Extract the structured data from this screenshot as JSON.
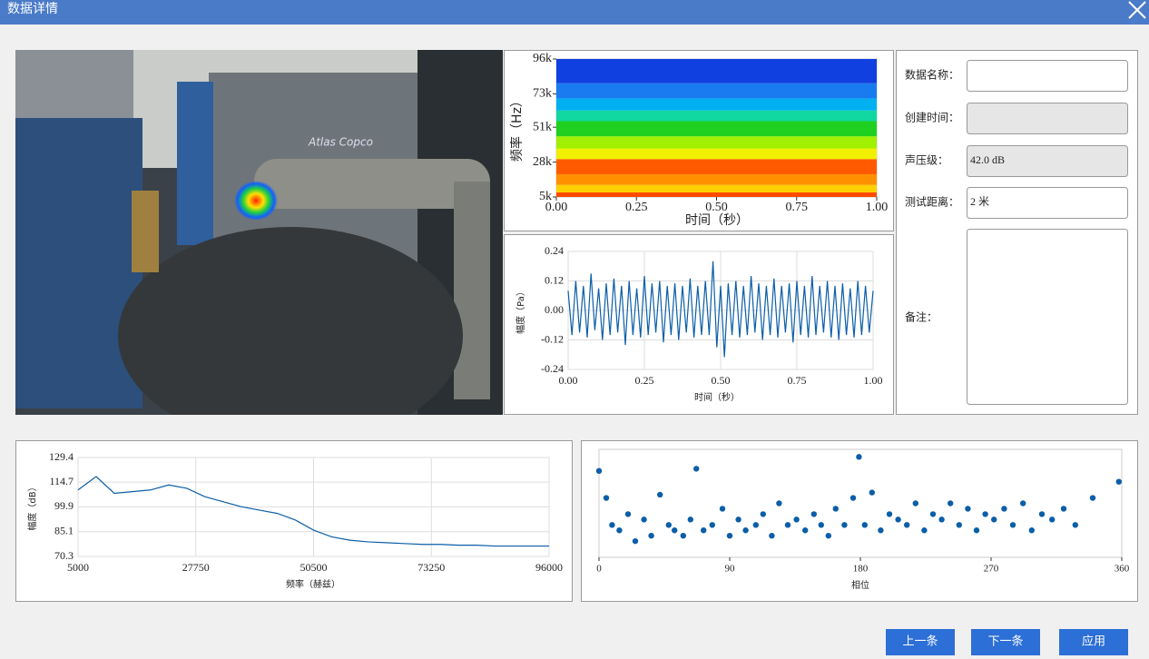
{
  "header": {
    "title": "数据详情"
  },
  "photo": {
    "label": "Atlas Copco"
  },
  "chart_data": [
    {
      "type": "spectrogram",
      "xlabel": "时间（秒）",
      "ylabel": "频率（Hz）",
      "xlim": [
        0,
        1
      ],
      "ylim": [
        5000,
        96000
      ],
      "xticks": [
        {
          "value": 0,
          "label": "0.00"
        },
        0.25,
        {
          "value": 0.5,
          "label": "0.50"
        },
        0.75,
        {
          "value": 1,
          "label": "1.00"
        }
      ],
      "yticks": [
        {
          "value": 96000,
          "label": "96k"
        },
        {
          "value": 73000,
          "label": "73k"
        },
        {
          "value": 51000,
          "label": "51k"
        },
        {
          "value": 28000,
          "label": "28k"
        },
        {
          "value": 5000,
          "label": "5k"
        }
      ],
      "grid": false,
      "bands": {
        "y": [
          5000,
          8000,
          13000,
          20000,
          30000,
          37000,
          45000,
          55000,
          62000,
          70000,
          80000,
          96000
        ],
        "colors": [
          "#ff4a00",
          "#ffd000",
          "#ff9000",
          "#ff5a00",
          "#f0f000",
          "#a0f000",
          "#20d020",
          "#10d8a0",
          "#00b0f0",
          "#1a7af0",
          "#1040e0"
        ]
      }
    },
    {
      "type": "line",
      "xlabel": "时间（秒）",
      "ylabel": "幅度（Pa）",
      "color": "#0b5ea8",
      "xlim": [
        0,
        1
      ],
      "ylim": [
        -0.24,
        0.24
      ],
      "xticks": [
        {
          "value": 0,
          "label": "0.00"
        },
        0.25,
        {
          "value": 0.5,
          "label": "0.50"
        },
        0.75,
        {
          "value": 1,
          "label": "1.00"
        }
      ],
      "yticks": [
        0.24,
        0.12,
        {
          "value": 0,
          "label": "0.00"
        },
        -0.12,
        -0.24
      ],
      "grid": true,
      "x": [
        0,
        0.0125,
        0.025,
        0.0375,
        0.05,
        0.0625,
        0.075,
        0.0875,
        0.1,
        0.1125,
        0.125,
        0.1375,
        0.15,
        0.1625,
        0.175,
        0.1875,
        0.2,
        0.2125,
        0.225,
        0.2375,
        0.25,
        0.2625,
        0.275,
        0.2875,
        0.3,
        0.3125,
        0.325,
        0.3375,
        0.35,
        0.3625,
        0.375,
        0.3875,
        0.4,
        0.4125,
        0.425,
        0.4375,
        0.45,
        0.4625,
        0.475,
        0.4875,
        0.5,
        0.5125,
        0.525,
        0.5375,
        0.55,
        0.5625,
        0.575,
        0.5875,
        0.6,
        0.6125,
        0.625,
        0.6375,
        0.65,
        0.6625,
        0.675,
        0.6875,
        0.7,
        0.7125,
        0.725,
        0.7375,
        0.75,
        0.7625,
        0.775,
        0.7875,
        0.8,
        0.8125,
        0.825,
        0.8375,
        0.85,
        0.8625,
        0.875,
        0.8875,
        0.9,
        0.9125,
        0.925,
        0.9375,
        0.95,
        0.9625,
        0.975,
        0.9875,
        1
      ],
      "values": [
        0.08,
        -0.1,
        0.12,
        -0.09,
        0.1,
        -0.11,
        0.15,
        -0.08,
        0.09,
        -0.12,
        0.11,
        -0.1,
        0.13,
        -0.09,
        0.1,
        -0.14,
        0.12,
        -0.1,
        0.09,
        -0.11,
        0.14,
        -0.1,
        0.11,
        -0.09,
        0.12,
        -0.13,
        0.1,
        -0.1,
        0.11,
        -0.12,
        0.1,
        -0.09,
        0.13,
        -0.11,
        0.1,
        -0.1,
        0.12,
        -0.1,
        0.2,
        -0.15,
        0.1,
        -0.19,
        0.11,
        -0.1,
        0.12,
        -0.11,
        0.1,
        -0.1,
        0.14,
        -0.09,
        0.11,
        -0.12,
        0.1,
        -0.1,
        0.13,
        -0.11,
        0.1,
        -0.09,
        0.11,
        -0.13,
        0.12,
        -0.1,
        0.1,
        -0.11,
        0.14,
        -0.1,
        0.1,
        -0.09,
        0.12,
        -0.11,
        0.1,
        -0.12,
        0.11,
        -0.1,
        0.09,
        -0.11,
        0.12,
        -0.1,
        0.1,
        -0.09,
        0.08
      ]
    },
    {
      "type": "line",
      "xlabel": "频率（赫兹）",
      "ylabel": "幅度（dB）",
      "color": "#0b5ea8",
      "xlim": [
        5000,
        96000
      ],
      "ylim": [
        70.3,
        129.4
      ],
      "xticks": [
        5000,
        27750,
        50500,
        73250,
        96000
      ],
      "yticks": [
        129.4,
        114.7,
        99.9,
        85.1,
        70.3
      ],
      "grid": true,
      "x": [
        5000,
        8500,
        12000,
        15500,
        19000,
        22500,
        26000,
        29500,
        33000,
        36500,
        40000,
        43500,
        47000,
        50500,
        54000,
        57500,
        61000,
        64500,
        68000,
        71500,
        75000,
        78500,
        82000,
        85500,
        89000,
        92500,
        96000
      ],
      "values": [
        110,
        118,
        108,
        109,
        110,
        113,
        111,
        106,
        103,
        100,
        98,
        96,
        92,
        86,
        82,
        80,
        79,
        78.5,
        78,
        77.5,
        77.5,
        77,
        77,
        76.5,
        76.5,
        76.5,
        76.5
      ]
    },
    {
      "type": "scatter",
      "xlabel": "相位",
      "color": "#0b5ea8",
      "xlim": [
        0,
        360
      ],
      "ylim": [
        0,
        1
      ],
      "xticks": [
        0,
        90,
        180,
        270,
        360
      ],
      "grid": false,
      "x": [
        0,
        5,
        9,
        14,
        20,
        25,
        31,
        36,
        42,
        48,
        52,
        58,
        63,
        67,
        72,
        78,
        85,
        90,
        96,
        101,
        108,
        113,
        119,
        124,
        130,
        136,
        142,
        148,
        153,
        158,
        163,
        169,
        175,
        179,
        183,
        188,
        194,
        200,
        206,
        212,
        218,
        224,
        230,
        236,
        242,
        248,
        254,
        260,
        266,
        272,
        279,
        285,
        292,
        298,
        305,
        312,
        320,
        328,
        340,
        358
      ],
      "values": [
        0.8,
        0.55,
        0.3,
        0.25,
        0.4,
        0.15,
        0.35,
        0.2,
        0.58,
        0.3,
        0.25,
        0.2,
        0.35,
        0.82,
        0.25,
        0.3,
        0.45,
        0.2,
        0.35,
        0.25,
        0.3,
        0.4,
        0.2,
        0.5,
        0.3,
        0.35,
        0.25,
        0.4,
        0.3,
        0.2,
        0.45,
        0.3,
        0.55,
        0.93,
        0.3,
        0.6,
        0.25,
        0.4,
        0.35,
        0.3,
        0.5,
        0.25,
        0.4,
        0.35,
        0.5,
        0.3,
        0.45,
        0.25,
        0.4,
        0.35,
        0.45,
        0.3,
        0.5,
        0.25,
        0.4,
        0.35,
        0.45,
        0.3,
        0.55,
        0.7
      ]
    }
  ],
  "form": {
    "fields": [
      {
        "label": "数据名称："
      },
      {
        "label": "创建时间：",
        "disabled": true
      },
      {
        "label": "声压级：",
        "value": "42.0 dB",
        "disabled": true
      },
      {
        "label": "测试距离：",
        "value": "2 米"
      },
      {
        "label": "备注："
      }
    ]
  },
  "buttons": [
    "上一条",
    "下一条",
    "应用"
  ]
}
